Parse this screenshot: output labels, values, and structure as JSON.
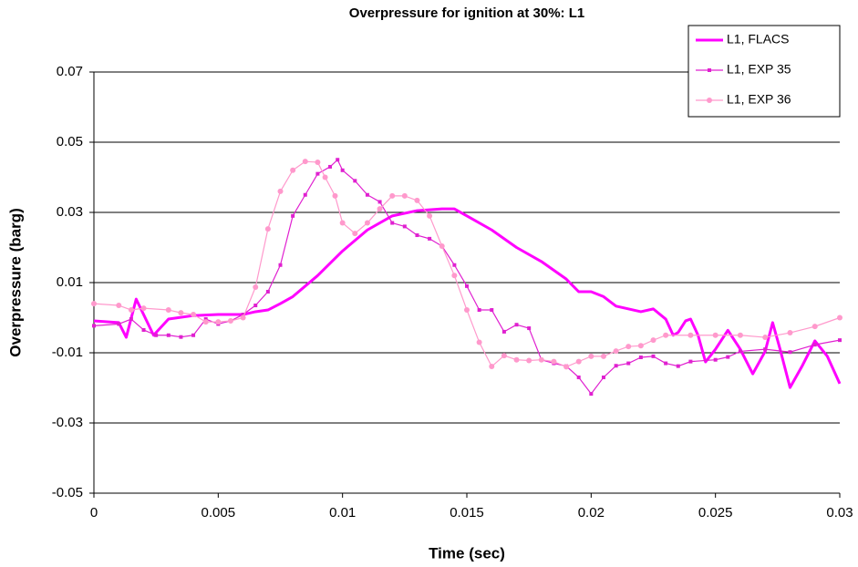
{
  "chart_data": {
    "type": "line",
    "title": "Overpressure for ignition at 30%: L1",
    "x_label": "Time (sec)",
    "y_label": "Overpressure (barg)",
    "xlim": [
      0,
      0.03
    ],
    "xticks": [
      0,
      0.005,
      0.01,
      0.015,
      0.02,
      0.025,
      0.03
    ],
    "ylim": [
      -0.05,
      0.07
    ],
    "yticks": [
      -0.05,
      -0.03,
      -0.01,
      0.01,
      0.03,
      0.05,
      0.07
    ],
    "grid": true,
    "legend": "top-right",
    "series": [
      {
        "name": "L1, FLACS",
        "color": "#ff00ff",
        "marker": "none",
        "x": [
          0,
          0.001,
          0.0013,
          0.0017,
          0.0024,
          0.003,
          0.004,
          0.005,
          0.006,
          0.0065,
          0.007,
          0.0075,
          0.008,
          0.009,
          0.01,
          0.011,
          0.012,
          0.013,
          0.014,
          0.0145,
          0.015,
          0.016,
          0.017,
          0.018,
          0.019,
          0.0195,
          0.02,
          0.0205,
          0.021,
          0.022,
          0.0225,
          0.023,
          0.0233,
          0.0235,
          0.0238,
          0.024,
          0.0243,
          0.0246,
          0.025,
          0.0255,
          0.026,
          0.0265,
          0.027,
          0.0273,
          0.0276,
          0.028,
          0.0285,
          0.029,
          0.0295,
          0.03
        ],
        "values": [
          -0.0009,
          -0.0014,
          -0.0056,
          0.0053,
          -0.005,
          -0.0004,
          0.0006,
          0.0009,
          0.0009,
          0.0017,
          0.0022,
          0.004,
          0.006,
          0.012,
          0.019,
          0.025,
          0.029,
          0.0305,
          0.031,
          0.031,
          0.029,
          0.025,
          0.02,
          0.016,
          0.011,
          0.0074,
          0.0074,
          0.006,
          0.0033,
          0.0017,
          0.0025,
          -0.0004,
          -0.005,
          -0.0042,
          -0.0009,
          -0.0004,
          -0.005,
          -0.0126,
          -0.009,
          -0.0036,
          -0.009,
          -0.016,
          -0.0096,
          -0.0014,
          -0.009,
          -0.0199,
          -0.0136,
          -0.0066,
          -0.011,
          -0.0188
        ]
      },
      {
        "name": "L1, EXP 35",
        "color": "#e020d0",
        "marker": "square",
        "x": [
          0,
          0.001,
          0.0015,
          0.002,
          0.0025,
          0.003,
          0.0035,
          0.004,
          0.0045,
          0.005,
          0.0055,
          0.006,
          0.0065,
          0.007,
          0.0075,
          0.008,
          0.0085,
          0.009,
          0.0095,
          0.0098,
          0.01,
          0.0105,
          0.011,
          0.0115,
          0.012,
          0.0125,
          0.013,
          0.0135,
          0.014,
          0.0145,
          0.015,
          0.0155,
          0.016,
          0.0165,
          0.017,
          0.0175,
          0.018,
          0.0185,
          0.019,
          0.0195,
          0.02,
          0.0205,
          0.021,
          0.0215,
          0.022,
          0.0225,
          0.023,
          0.0235,
          0.024,
          0.025,
          0.0255,
          0.026,
          0.027,
          0.028,
          0.029,
          0.03
        ],
        "values": [
          -0.0023,
          -0.0018,
          -0.0004,
          -0.0035,
          -0.005,
          -0.005,
          -0.0055,
          -0.005,
          -0.0004,
          -0.0018,
          -0.0009,
          0.0009,
          0.0035,
          0.0074,
          0.015,
          0.029,
          0.035,
          0.041,
          0.043,
          0.045,
          0.042,
          0.039,
          0.035,
          0.033,
          0.027,
          0.026,
          0.0235,
          0.0225,
          0.0204,
          0.015,
          0.009,
          0.0022,
          0.0022,
          -0.004,
          -0.002,
          -0.003,
          -0.012,
          -0.013,
          -0.0138,
          -0.017,
          -0.0217,
          -0.017,
          -0.0137,
          -0.013,
          -0.0113,
          -0.011,
          -0.013,
          -0.0138,
          -0.0125,
          -0.012,
          -0.0112,
          -0.0096,
          -0.009,
          -0.0098,
          -0.0077,
          -0.0064
        ]
      },
      {
        "name": "L1, EXP 36",
        "color": "#ff99cc",
        "marker": "circle",
        "x": [
          0,
          0.001,
          0.0015,
          0.002,
          0.003,
          0.0035,
          0.004,
          0.0045,
          0.005,
          0.0055,
          0.006,
          0.0065,
          0.007,
          0.0075,
          0.008,
          0.0085,
          0.009,
          0.0093,
          0.0097,
          0.01,
          0.0105,
          0.011,
          0.0115,
          0.012,
          0.0125,
          0.013,
          0.0135,
          0.014,
          0.0145,
          0.015,
          0.0155,
          0.016,
          0.0165,
          0.017,
          0.0175,
          0.018,
          0.0185,
          0.019,
          0.0195,
          0.02,
          0.0205,
          0.021,
          0.0215,
          0.022,
          0.0225,
          0.023,
          0.024,
          0.025,
          0.026,
          0.027,
          0.028,
          0.029,
          0.03
        ],
        "values": [
          0.004,
          0.0035,
          0.0022,
          0.0027,
          0.0022,
          0.0014,
          0.0009,
          -0.0012,
          -0.0012,
          -0.0009,
          0.0,
          0.0087,
          0.0253,
          0.036,
          0.042,
          0.0445,
          0.0443,
          0.04,
          0.0347,
          0.027,
          0.024,
          0.027,
          0.031,
          0.0347,
          0.0347,
          0.0334,
          0.029,
          0.0204,
          0.012,
          0.0022,
          -0.007,
          -0.0139,
          -0.0108,
          -0.012,
          -0.0122,
          -0.012,
          -0.0125,
          -0.014,
          -0.0125,
          -0.011,
          -0.011,
          -0.0095,
          -0.0082,
          -0.008,
          -0.0064,
          -0.005,
          -0.005,
          -0.005,
          -0.005,
          -0.0056,
          -0.0043,
          -0.0025,
          0.0
        ]
      }
    ]
  }
}
